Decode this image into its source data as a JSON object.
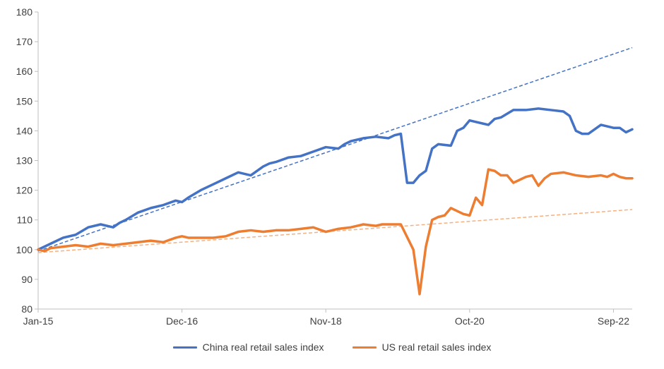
{
  "chart_data": {
    "type": "line",
    "title": "",
    "xlabel": "",
    "ylabel": "",
    "ylim": [
      80,
      180
    ],
    "yticks": [
      80,
      90,
      100,
      110,
      120,
      130,
      140,
      150,
      160,
      170,
      180
    ],
    "x_tick_labels": [
      "Jan-15",
      "Dec-16",
      "Nov-18",
      "Oct-20",
      "Sep-22"
    ],
    "x_tick_month_index": [
      0,
      23,
      46,
      69,
      92
    ],
    "x_range_month_index": [
      0,
      95
    ],
    "legend_position": "bottom",
    "grid": false,
    "series": [
      {
        "name": "China real retail sales index",
        "color": "#4472C4",
        "x_month_index": [
          0,
          2,
          4,
          6,
          8,
          10,
          12,
          13,
          14,
          16,
          18,
          20,
          22,
          23,
          24,
          26,
          28,
          30,
          32,
          34,
          36,
          37,
          38,
          40,
          42,
          44,
          46,
          48,
          49,
          50,
          52,
          54,
          56,
          57,
          58,
          59,
          60,
          61,
          62,
          63,
          64,
          66,
          67,
          68,
          69,
          70,
          71,
          72,
          73,
          74,
          76,
          78,
          80,
          82,
          84,
          85,
          86,
          87,
          88,
          90,
          92,
          93,
          94,
          95
        ],
        "values": [
          100,
          102,
          104,
          105,
          107.5,
          108.5,
          107.5,
          109,
          110,
          112.5,
          114,
          115,
          116.5,
          116,
          117.5,
          120,
          122,
          124,
          126,
          125,
          128,
          129,
          129.5,
          131,
          131.5,
          133,
          134.5,
          134,
          135.5,
          136.5,
          137.5,
          138,
          137.5,
          138.5,
          139,
          122.5,
          122.5,
          125,
          126.5,
          134,
          135.5,
          135,
          140,
          141,
          143.5,
          143,
          142.5,
          142,
          144,
          144.5,
          147,
          147,
          147.5,
          147,
          146.5,
          145,
          140,
          139,
          139,
          142,
          141,
          141,
          139.5,
          140.5
        ]
      },
      {
        "name": "US real retail sales index",
        "color": "#ED7D31",
        "x_month_index": [
          0,
          1,
          2,
          4,
          6,
          8,
          10,
          12,
          14,
          16,
          18,
          20,
          22,
          23,
          24,
          26,
          28,
          30,
          32,
          34,
          36,
          38,
          40,
          42,
          44,
          46,
          47,
          48,
          50,
          52,
          54,
          55,
          56,
          58,
          60,
          61,
          62,
          63,
          64,
          65,
          66,
          67,
          68,
          69,
          70,
          71,
          72,
          73,
          74,
          75,
          76,
          77,
          78,
          79,
          80,
          81,
          82,
          84,
          86,
          88,
          90,
          91,
          92,
          93,
          94,
          95
        ],
        "values": [
          100,
          99.5,
          100.5,
          101,
          101.5,
          101,
          102,
          101.5,
          102,
          102.5,
          103,
          102.5,
          104,
          104.5,
          104,
          104,
          104,
          104.5,
          106,
          106.5,
          106,
          106.5,
          106.5,
          107,
          107.5,
          106,
          106.5,
          107,
          107.5,
          108.5,
          108,
          108.5,
          108.5,
          108.5,
          100,
          85,
          101,
          110,
          111,
          111.5,
          114,
          113,
          112,
          111.5,
          117.5,
          115,
          127,
          126.5,
          125,
          125,
          122.5,
          123.5,
          124.5,
          125,
          121.5,
          124,
          125.5,
          126,
          125,
          124.5,
          125,
          124.5,
          125.5,
          124.5,
          124,
          124
        ]
      }
    ],
    "trend_lines": [
      {
        "series": "China real retail sales index",
        "style": "dashed",
        "color": "#4472C4",
        "start": [
          0,
          99.5
        ],
        "end": [
          95,
          168
        ]
      },
      {
        "series": "US real retail sales index",
        "style": "dashed",
        "color": "#F4B183",
        "start": [
          0,
          99
        ],
        "end": [
          95,
          113.5
        ]
      }
    ]
  },
  "legend": {
    "china_label": "China real retail sales index",
    "us_label": "US real retail sales index",
    "china_color": "#4472C4",
    "us_color": "#ED7D31"
  }
}
